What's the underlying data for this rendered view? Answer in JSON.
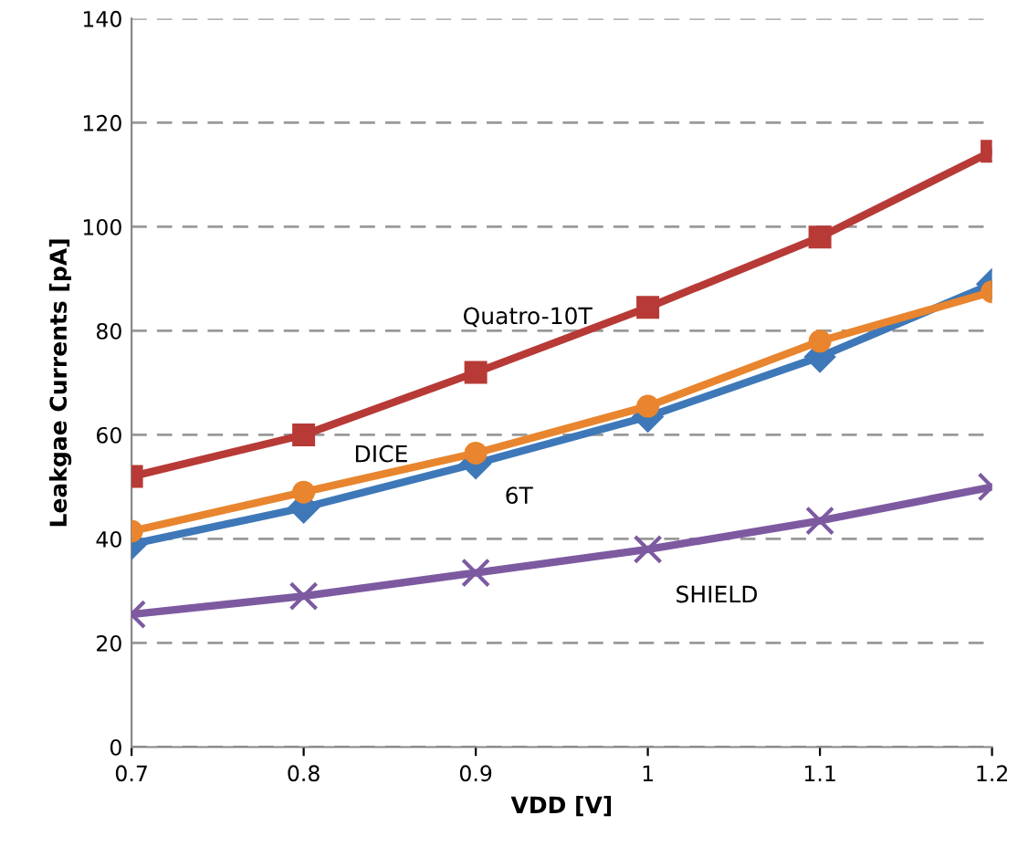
{
  "chart_data": {
    "type": "line",
    "xlabel": "VDD [V]",
    "ylabel": "Leakgae Currents [pA]",
    "x": [
      0.7,
      0.8,
      0.9,
      1.0,
      1.1,
      1.2
    ],
    "xlim": [
      0.7,
      1.2
    ],
    "xticks": [
      0.7,
      0.8,
      0.9,
      {
        "value": 1.0,
        "label": "1"
      },
      1.1,
      1.2
    ],
    "ylim": [
      0,
      140
    ],
    "yticks": [
      0,
      20,
      40,
      60,
      80,
      100,
      120,
      140
    ],
    "grid": "y",
    "legend": false,
    "series": [
      {
        "name": "Quatro-10T",
        "color": "#b73a36",
        "marker": "square",
        "values": [
          52,
          60,
          72,
          84.5,
          98,
          114.5
        ]
      },
      {
        "name": "DICE",
        "color": "#e8852e",
        "marker": "circle",
        "values": [
          41.5,
          49,
          56.5,
          65.5,
          78,
          87.5
        ]
      },
      {
        "name": "6T",
        "color": "#3e78b8",
        "marker": "diamond",
        "values": [
          39,
          46,
          54.5,
          63.5,
          75,
          89
        ]
      },
      {
        "name": "SHIELD",
        "color": "#7d5aa0",
        "marker": "cross",
        "values": [
          25.5,
          29,
          33.5,
          38,
          43.5,
          50
        ]
      }
    ]
  }
}
